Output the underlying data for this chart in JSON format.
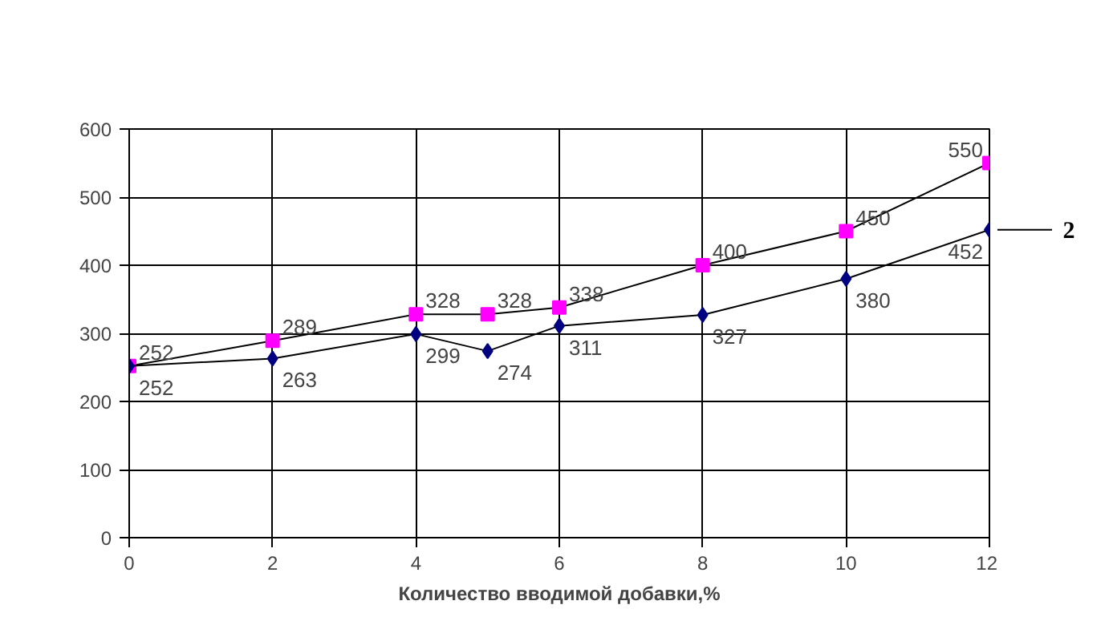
{
  "chart_data": {
    "type": "line",
    "xlabel": "Количество вводимой добавки,%",
    "x": [
      0,
      2,
      4,
      5,
      6,
      8,
      10,
      12
    ],
    "series": [
      {
        "color": "#ff00ff",
        "marker": "square",
        "values": [
          252,
          289,
          328,
          328,
          338,
          400,
          450,
          550
        ]
      },
      {
        "name": "2",
        "color": "#000080",
        "marker": "diamond",
        "values": [
          252,
          263,
          299,
          274,
          311,
          327,
          380,
          452
        ]
      }
    ],
    "xlim": [
      0,
      12
    ],
    "xticks": [
      0,
      2,
      4,
      6,
      8,
      10,
      12
    ],
    "ylim": [
      0,
      600
    ],
    "yticks": [
      0,
      100,
      200,
      300,
      400,
      500,
      600
    ],
    "grid": true,
    "data_labels": true
  }
}
